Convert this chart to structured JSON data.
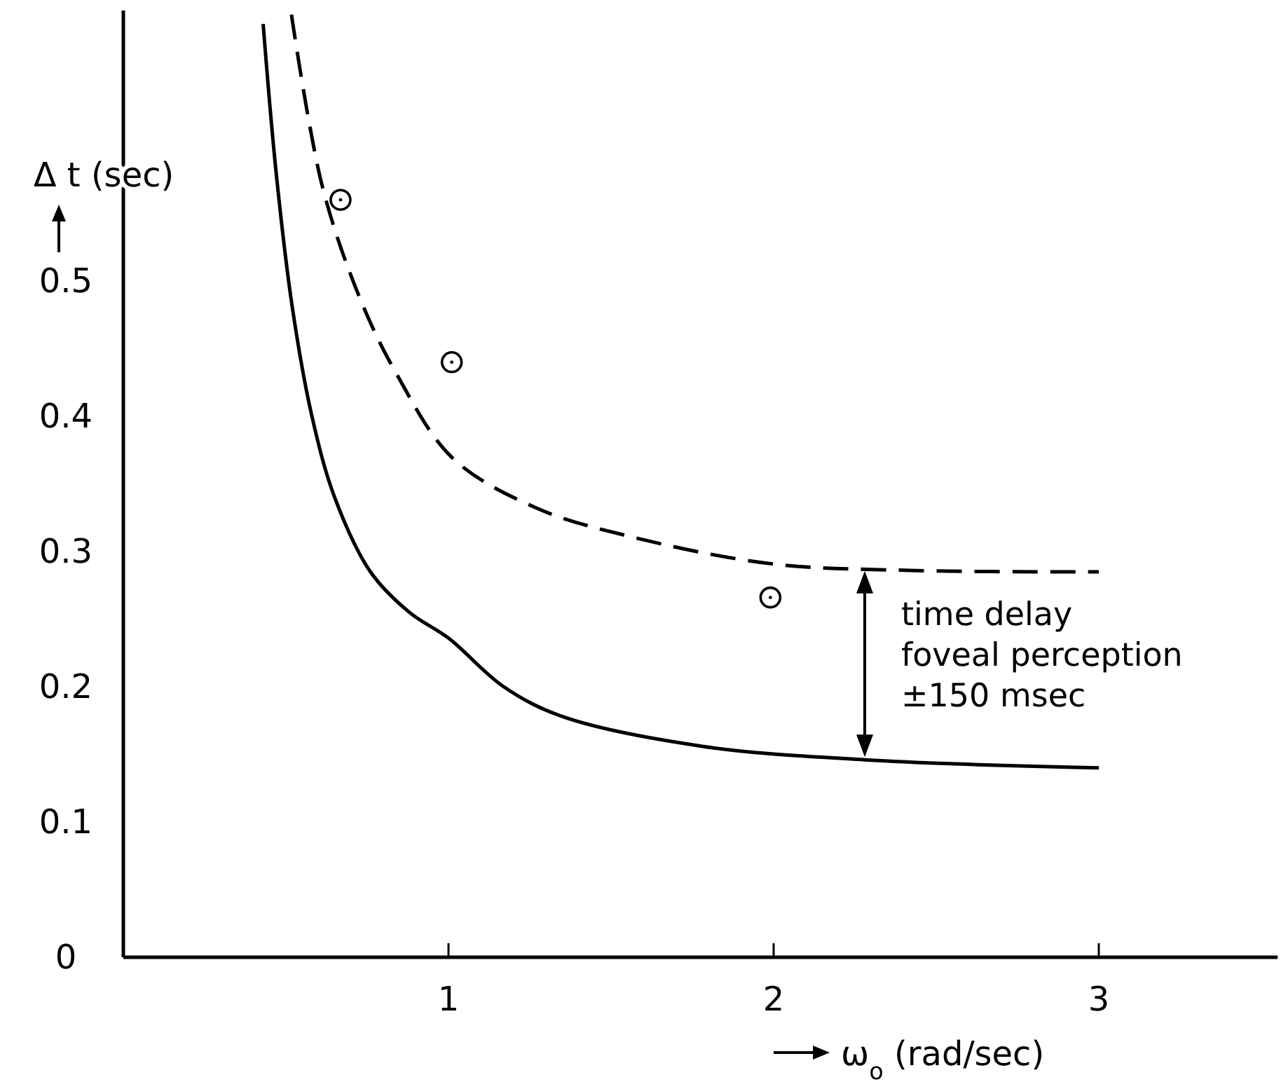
{
  "chart_data": {
    "type": "line",
    "xlabel": "ω$_{o}$ (rad/sec)",
    "ylabel": "Δ t (sec)",
    "xlim": [
      0,
      3.55
    ],
    "ylim": [
      0,
      0.7
    ],
    "xticks": [
      1,
      2,
      3
    ],
    "yticks": [
      0,
      0.1,
      0.2,
      0.3,
      0.4,
      0.5
    ],
    "grid": false,
    "series": [
      {
        "color": "#000000",
        "line_style": "solid",
        "marker": "none",
        "x": [
          0.43,
          0.47,
          0.52,
          0.58,
          0.65,
          0.76,
          0.88,
          1.0,
          1.17,
          1.35,
          1.78,
          2.28,
          3.0
        ],
        "values": [
          0.69,
          0.58,
          0.48,
          0.4,
          0.34,
          0.285,
          0.255,
          0.236,
          0.2,
          0.178,
          0.156,
          0.146,
          0.14
        ]
      },
      {
        "type": "line",
        "color": "#000000",
        "line_style": "dashed",
        "marker": "none",
        "x": [
          0.517,
          0.612,
          0.728,
          0.841,
          1.013,
          1.272,
          1.56,
          1.991,
          2.42,
          3.0
        ],
        "values": [
          0.697,
          0.57,
          0.487,
          0.431,
          0.369,
          0.332,
          0.311,
          0.291,
          0.286,
          0.285
        ]
      },
      {
        "type": "scatter",
        "color": "#000000",
        "marker": "circle",
        "x": [
          0.668,
          1.01,
          1.99
        ],
        "values": [
          0.56,
          0.44,
          0.266
        ]
      }
    ],
    "annotations": [
      "time delay\nfoveal perception\n±150 msec"
    ]
  }
}
